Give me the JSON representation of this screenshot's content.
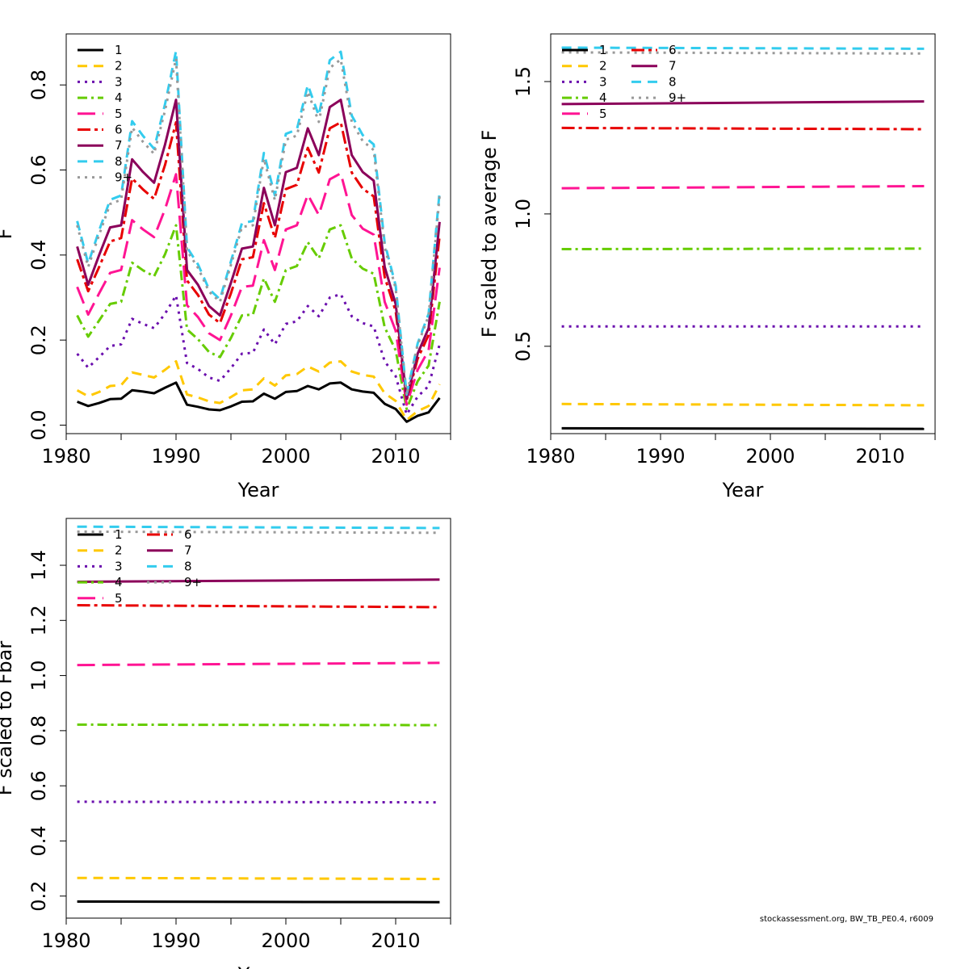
{
  "footer_text": "stockassessment.org, BW_TB_PE0.4, r6009",
  "legend_labels": [
    "1",
    "2",
    "3",
    "4",
    "5",
    "6",
    "7",
    "8",
    "9+"
  ],
  "series_styles": [
    {
      "color": "#000000",
      "dash": ""
    },
    {
      "color": "#FFC800",
      "dash": "12 8"
    },
    {
      "color": "#6A0DAD",
      "dash": "3 6"
    },
    {
      "color": "#66CC00",
      "dash": "12 5 3 5"
    },
    {
      "color": "#FF1493",
      "dash": "22 9"
    },
    {
      "color": "#E80000",
      "dash": "16 5 4 5"
    },
    {
      "color": "#8B005A",
      "dash": ""
    },
    {
      "color": "#33CCEE",
      "dash": "12 8"
    },
    {
      "color": "#999999",
      "dash": "3 6"
    }
  ],
  "chart_data": [
    {
      "type": "line",
      "xlabel": "Year",
      "ylabel": "F",
      "xlim": [
        1980,
        2015
      ],
      "ylim": [
        -0.02,
        0.92
      ],
      "xticks": [
        1980,
        1990,
        2000,
        2010
      ],
      "yticks": [
        0.0,
        0.2,
        0.4,
        0.6,
        0.8
      ],
      "ytick_labels": [
        "0.0",
        "0.2",
        "0.4",
        "0.6",
        "0.8"
      ],
      "legend_position": "top-left",
      "legend_columns": 1,
      "x": [
        1981,
        1982,
        1983,
        1984,
        1985,
        1986,
        1987,
        1988,
        1989,
        1990,
        1991,
        1992,
        1993,
        1994,
        1995,
        1996,
        1997,
        1998,
        1999,
        2000,
        2001,
        2002,
        2003,
        2004,
        2005,
        2006,
        2007,
        2008,
        2009,
        2010,
        2011,
        2012,
        2013,
        2014
      ],
      "series": [
        {
          "name": "1",
          "values": [
            0.055,
            0.045,
            0.052,
            0.061,
            0.062,
            0.082,
            0.079,
            0.075,
            0.088,
            0.1,
            0.048,
            0.043,
            0.037,
            0.035,
            0.044,
            0.055,
            0.056,
            0.074,
            0.062,
            0.078,
            0.08,
            0.092,
            0.084,
            0.098,
            0.1,
            0.084,
            0.079,
            0.076,
            0.05,
            0.038,
            0.008,
            0.022,
            0.03,
            0.064
          ]
        },
        {
          "name": "2",
          "values": [
            0.082,
            0.068,
            0.078,
            0.092,
            0.094,
            0.124,
            0.118,
            0.112,
            0.13,
            0.15,
            0.072,
            0.065,
            0.056,
            0.052,
            0.066,
            0.082,
            0.084,
            0.11,
            0.093,
            0.117,
            0.12,
            0.138,
            0.126,
            0.147,
            0.15,
            0.126,
            0.118,
            0.114,
            0.075,
            0.057,
            0.012,
            0.033,
            0.045,
            0.096
          ]
        },
        {
          "name": "3",
          "values": [
            0.168,
            0.135,
            0.16,
            0.186,
            0.19,
            0.25,
            0.238,
            0.228,
            0.262,
            0.305,
            0.146,
            0.132,
            0.112,
            0.104,
            0.134,
            0.168,
            0.17,
            0.225,
            0.19,
            0.238,
            0.244,
            0.28,
            0.256,
            0.3,
            0.308,
            0.256,
            0.24,
            0.232,
            0.15,
            0.115,
            0.025,
            0.067,
            0.092,
            0.19
          ]
        },
        {
          "name": "4",
          "values": [
            0.258,
            0.208,
            0.246,
            0.285,
            0.29,
            0.382,
            0.364,
            0.35,
            0.402,
            0.47,
            0.225,
            0.202,
            0.172,
            0.16,
            0.205,
            0.258,
            0.26,
            0.345,
            0.29,
            0.365,
            0.374,
            0.43,
            0.392,
            0.46,
            0.47,
            0.392,
            0.368,
            0.356,
            0.23,
            0.176,
            0.038,
            0.103,
            0.14,
            0.29
          ]
        },
        {
          "name": "5",
          "values": [
            0.325,
            0.26,
            0.31,
            0.358,
            0.365,
            0.482,
            0.46,
            0.442,
            0.508,
            0.59,
            0.282,
            0.254,
            0.216,
            0.2,
            0.258,
            0.325,
            0.328,
            0.435,
            0.365,
            0.46,
            0.47,
            0.542,
            0.494,
            0.578,
            0.592,
            0.494,
            0.462,
            0.448,
            0.29,
            0.222,
            0.048,
            0.13,
            0.176,
            0.37
          ]
        },
        {
          "name": "6",
          "values": [
            0.39,
            0.315,
            0.372,
            0.432,
            0.44,
            0.58,
            0.554,
            0.532,
            0.612,
            0.712,
            0.34,
            0.306,
            0.26,
            0.24,
            0.31,
            0.39,
            0.395,
            0.522,
            0.44,
            0.555,
            0.565,
            0.652,
            0.594,
            0.698,
            0.712,
            0.594,
            0.556,
            0.538,
            0.348,
            0.268,
            0.058,
            0.156,
            0.212,
            0.445
          ]
        },
        {
          "name": "7",
          "values": [
            0.42,
            0.33,
            0.4,
            0.465,
            0.47,
            0.625,
            0.595,
            0.57,
            0.66,
            0.765,
            0.365,
            0.33,
            0.28,
            0.258,
            0.335,
            0.415,
            0.42,
            0.558,
            0.47,
            0.595,
            0.605,
            0.698,
            0.635,
            0.748,
            0.765,
            0.635,
            0.595,
            0.575,
            0.372,
            0.285,
            0.062,
            0.168,
            0.228,
            0.478
          ]
        },
        {
          "name": "8",
          "values": [
            0.48,
            0.38,
            0.458,
            0.53,
            0.54,
            0.715,
            0.68,
            0.65,
            0.755,
            0.88,
            0.418,
            0.378,
            0.32,
            0.296,
            0.385,
            0.475,
            0.48,
            0.64,
            0.54,
            0.685,
            0.695,
            0.8,
            0.728,
            0.858,
            0.878,
            0.728,
            0.682,
            0.66,
            0.428,
            0.328,
            0.072,
            0.192,
            0.262,
            0.55
          ]
        },
        {
          "name": "9+",
          "values": [
            0.47,
            0.372,
            0.448,
            0.52,
            0.53,
            0.7,
            0.666,
            0.638,
            0.74,
            0.862,
            0.41,
            0.37,
            0.314,
            0.29,
            0.377,
            0.466,
            0.47,
            0.627,
            0.529,
            0.671,
            0.681,
            0.784,
            0.713,
            0.84,
            0.86,
            0.713,
            0.668,
            0.647,
            0.419,
            0.321,
            0.07,
            0.188,
            0.257,
            0.539
          ]
        }
      ]
    },
    {
      "type": "line",
      "xlabel": "Year",
      "ylabel": "F scaled to average F",
      "xlim": [
        1980,
        2015
      ],
      "ylim": [
        0.17,
        1.68
      ],
      "xticks": [
        1980,
        1990,
        2000,
        2010
      ],
      "yticks": [
        0.5,
        1.0,
        1.5
      ],
      "ytick_labels": [
        "0.5",
        "1.0",
        "1.5"
      ],
      "legend_position": "top-left",
      "legend_columns": 2,
      "x": [
        1981,
        2014
      ],
      "series": [
        {
          "name": "1",
          "values": [
            0.19,
            0.188
          ]
        },
        {
          "name": "2",
          "values": [
            0.282,
            0.277
          ]
        },
        {
          "name": "3",
          "values": [
            0.575,
            0.575
          ]
        },
        {
          "name": "4",
          "values": [
            0.867,
            0.869
          ]
        },
        {
          "name": "5",
          "values": [
            1.097,
            1.105
          ]
        },
        {
          "name": "6",
          "values": [
            1.325,
            1.32
          ]
        },
        {
          "name": "7",
          "values": [
            1.415,
            1.425
          ]
        },
        {
          "name": "8",
          "values": [
            1.628,
            1.624
          ]
        },
        {
          "name": "9+",
          "values": [
            1.61,
            1.606
          ]
        }
      ]
    },
    {
      "type": "line",
      "xlabel": "Year",
      "ylabel": "F scaled to Fbar",
      "xlim": [
        1980,
        2015
      ],
      "ylim": [
        0.12,
        1.57
      ],
      "xticks": [
        1980,
        1990,
        2000,
        2010
      ],
      "yticks": [
        0.2,
        0.4,
        0.6,
        0.8,
        1.0,
        1.2,
        1.4
      ],
      "ytick_labels": [
        "0.2",
        "0.4",
        "0.6",
        "0.8",
        "1.0",
        "1.2",
        "1.4"
      ],
      "legend_position": "top-left",
      "legend_columns": 2,
      "x": [
        1981,
        2014
      ],
      "series": [
        {
          "name": "1",
          "values": [
            0.18,
            0.178
          ]
        },
        {
          "name": "2",
          "values": [
            0.266,
            0.262
          ]
        },
        {
          "name": "3",
          "values": [
            0.542,
            0.54
          ]
        },
        {
          "name": "4",
          "values": [
            0.822,
            0.82
          ]
        },
        {
          "name": "5",
          "values": [
            1.038,
            1.046
          ]
        },
        {
          "name": "6",
          "values": [
            1.255,
            1.248
          ]
        },
        {
          "name": "7",
          "values": [
            1.34,
            1.348
          ]
        },
        {
          "name": "8",
          "values": [
            1.54,
            1.535
          ]
        },
        {
          "name": "9+",
          "values": [
            1.522,
            1.518
          ]
        }
      ]
    }
  ]
}
